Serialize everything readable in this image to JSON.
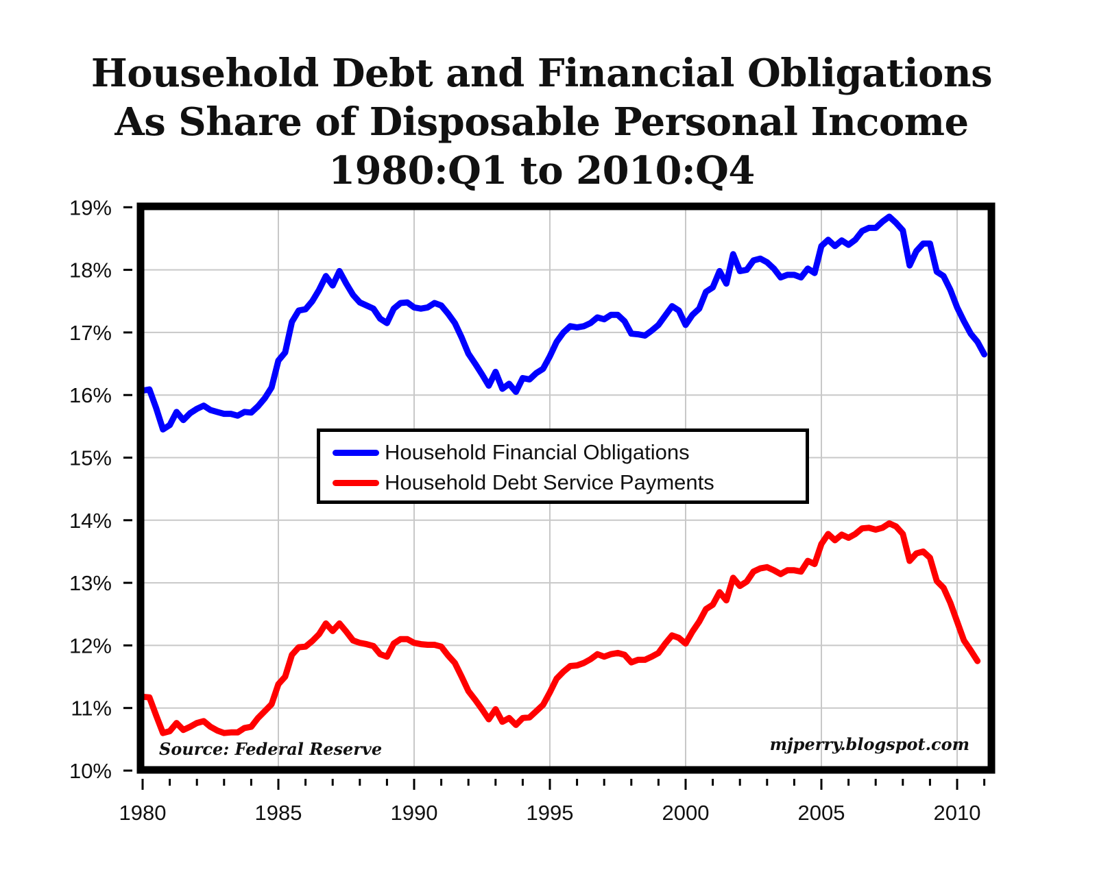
{
  "title": {
    "line1": "Household Debt and Financial Obligations",
    "line2": "As Share of Disposable Personal Income",
    "line3": "1980:Q1 to 2010:Q4"
  },
  "source": "Source: Federal Reserve",
  "credit": "mjperry.blogspot.com",
  "legend": {
    "items": [
      {
        "label": "Household Financial Obligations",
        "color": "#0000ff"
      },
      {
        "label": "Household Debt Service Payments",
        "color": "#ff0000"
      }
    ]
  },
  "axes": {
    "y_ticks": [
      "10%",
      "11%",
      "12%",
      "13%",
      "14%",
      "15%",
      "16%",
      "17%",
      "18%",
      "19%"
    ],
    "x_ticks": [
      "1980",
      "1985",
      "1990",
      "1995",
      "2000",
      "2005",
      "2010"
    ]
  },
  "chart_data": {
    "type": "line",
    "title": "Household Debt and Financial Obligations As Share of Disposable Personal Income 1980:Q1 to 2010:Q4",
    "xlabel": "",
    "ylabel": "",
    "ylim": [
      10,
      19
    ],
    "xlim": [
      1980,
      2011
    ],
    "grid": true,
    "legend_position": "center",
    "x_start": 1980.0,
    "x_step": 0.25,
    "series": [
      {
        "name": "Household Financial Obligations",
        "color": "#0000ff",
        "values": [
          16.07,
          16.09,
          15.79,
          15.45,
          15.52,
          15.73,
          15.6,
          15.71,
          15.78,
          15.83,
          15.76,
          15.73,
          15.7,
          15.7,
          15.67,
          15.73,
          15.72,
          15.82,
          15.95,
          16.12,
          16.55,
          16.68,
          17.17,
          17.35,
          17.37,
          17.5,
          17.68,
          17.9,
          17.75,
          17.98,
          17.78,
          17.6,
          17.48,
          17.43,
          17.38,
          17.22,
          17.15,
          17.38,
          17.47,
          17.48,
          17.4,
          17.38,
          17.4,
          17.47,
          17.43,
          17.3,
          17.15,
          16.92,
          16.66,
          16.5,
          16.33,
          16.15,
          16.37,
          16.1,
          16.18,
          16.05,
          16.27,
          16.25,
          16.35,
          16.42,
          16.62,
          16.85,
          17.0,
          17.1,
          17.08,
          17.1,
          17.15,
          17.24,
          17.21,
          17.28,
          17.28,
          17.18,
          16.98,
          16.97,
          16.95,
          17.03,
          17.12,
          17.27,
          17.42,
          17.35,
          17.12,
          17.28,
          17.38,
          17.65,
          17.72,
          17.98,
          17.78,
          18.25,
          17.98,
          18.0,
          18.15,
          18.18,
          18.12,
          18.02,
          17.88,
          17.92,
          17.92,
          17.88,
          18.02,
          17.95,
          18.38,
          18.48,
          18.38,
          18.47,
          18.4,
          18.48,
          18.62,
          18.67,
          18.67,
          18.77,
          18.85,
          18.75,
          18.63,
          18.07,
          18.3,
          18.42,
          18.42,
          17.97,
          17.9,
          17.68,
          17.4,
          17.18,
          16.98,
          16.85,
          16.65
        ]
      },
      {
        "name": "Household Debt Service Payments",
        "color": "#ff0000",
        "values": [
          11.18,
          11.17,
          10.88,
          10.6,
          10.63,
          10.76,
          10.65,
          10.7,
          10.76,
          10.79,
          10.7,
          10.64,
          10.6,
          10.61,
          10.61,
          10.68,
          10.7,
          10.84,
          10.95,
          11.06,
          11.38,
          11.5,
          11.85,
          11.97,
          11.98,
          12.07,
          12.18,
          12.35,
          12.23,
          12.35,
          12.22,
          12.08,
          12.04,
          12.02,
          11.99,
          11.86,
          11.82,
          12.03,
          12.1,
          12.1,
          12.04,
          12.02,
          12.01,
          12.01,
          11.98,
          11.84,
          11.72,
          11.5,
          11.27,
          11.13,
          10.98,
          10.82,
          10.98,
          10.78,
          10.84,
          10.73,
          10.84,
          10.85,
          10.95,
          11.05,
          11.25,
          11.47,
          11.58,
          11.67,
          11.68,
          11.72,
          11.78,
          11.86,
          11.82,
          11.86,
          11.88,
          11.85,
          11.73,
          11.77,
          11.77,
          11.82,
          11.88,
          12.03,
          12.16,
          12.12,
          12.03,
          12.22,
          12.38,
          12.58,
          12.65,
          12.85,
          12.72,
          13.08,
          12.95,
          13.02,
          13.18,
          13.23,
          13.25,
          13.2,
          13.14,
          13.2,
          13.2,
          13.18,
          13.35,
          13.3,
          13.62,
          13.78,
          13.68,
          13.77,
          13.72,
          13.78,
          13.87,
          13.88,
          13.85,
          13.88,
          13.95,
          13.9,
          13.78,
          13.35,
          13.47,
          13.5,
          13.4,
          13.03,
          12.92,
          12.68,
          12.38,
          12.08,
          11.92,
          11.75
        ]
      }
    ]
  }
}
